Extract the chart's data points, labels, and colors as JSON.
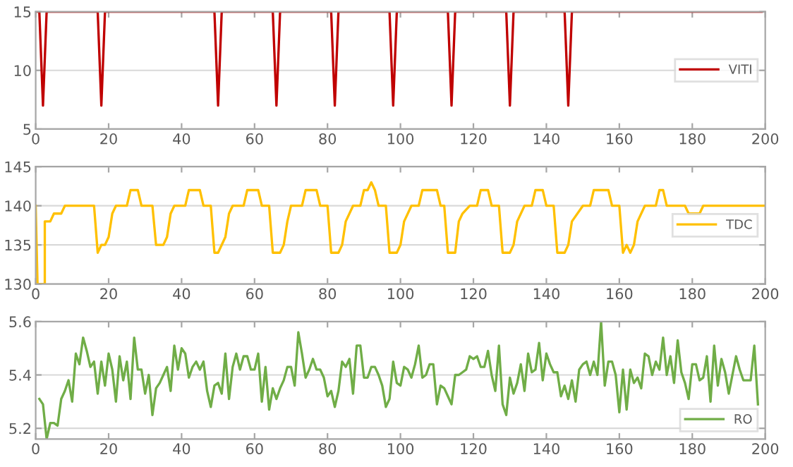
{
  "chart_data": [
    {
      "type": "line",
      "xlim": [
        0,
        200
      ],
      "xticks": [
        0,
        20,
        40,
        60,
        80,
        100,
        120,
        140,
        160,
        180,
        200
      ],
      "ylim": [
        5,
        15
      ],
      "yticks": [
        5,
        10,
        15
      ],
      "grid": "y",
      "legend": "right",
      "line_style": "solid",
      "marker": "none",
      "series": [
        {
          "name": "VITI",
          "color": "#c00000",
          "x": [
            0,
            1,
            2,
            3,
            17,
            18,
            19,
            49,
            50,
            51,
            65,
            66,
            67,
            81,
            82,
            83,
            97,
            98,
            99,
            113,
            114,
            115,
            129,
            130,
            131,
            145,
            146,
            147,
            199
          ],
          "values": [
            15,
            15,
            7,
            15,
            15,
            7,
            15,
            15,
            7,
            15,
            15,
            7,
            15,
            15,
            7,
            15,
            15,
            7,
            15,
            15,
            7,
            15,
            15,
            7,
            15,
            15,
            7,
            15,
            15
          ]
        }
      ]
    },
    {
      "type": "line",
      "xlim": [
        0,
        200
      ],
      "xticks": [
        0,
        20,
        40,
        60,
        80,
        100,
        120,
        140,
        160,
        180,
        200
      ],
      "ylim": [
        130,
        145
      ],
      "yticks": [
        130,
        135,
        140,
        145
      ],
      "grid": "y",
      "legend": "right",
      "line_style": "solid",
      "marker": "none",
      "series": [
        {
          "name": "TDC",
          "color": "#ffc000",
          "x": [
            0,
            0.5,
            2.5,
            2.5,
            4,
            5,
            7,
            8,
            16,
            17,
            18,
            19,
            20,
            21,
            22,
            25,
            26,
            28,
            29,
            32,
            33,
            35,
            36,
            37,
            38,
            41,
            42,
            45,
            46,
            48,
            49,
            50,
            52,
            53,
            54,
            57,
            58,
            61,
            62,
            64,
            65,
            67,
            68,
            69,
            70,
            73,
            74,
            77,
            78,
            80,
            81,
            83,
            84,
            85,
            87,
            89,
            90,
            91,
            92,
            93,
            94,
            96,
            97,
            99,
            100,
            101,
            103,
            105,
            106,
            110,
            111,
            112,
            113,
            115,
            116,
            117,
            119,
            121,
            122,
            124,
            125,
            127,
            128,
            130,
            131,
            132,
            134,
            136,
            137,
            139,
            140,
            142,
            143,
            145,
            146,
            147,
            150,
            152,
            153,
            157,
            158,
            160,
            161,
            162,
            163,
            164,
            165,
            167,
            170,
            171,
            172,
            173,
            178,
            179,
            182,
            183,
            200
          ],
          "values": [
            140,
            130,
            130,
            138,
            138,
            139,
            139,
            140,
            140,
            134,
            135,
            135,
            136,
            139,
            140,
            140,
            142,
            142,
            140,
            140,
            135,
            135,
            136,
            139,
            140,
            140,
            142,
            142,
            140,
            140,
            134,
            134,
            136,
            139,
            140,
            140,
            142,
            142,
            140,
            140,
            134,
            134,
            135,
            138,
            140,
            140,
            142,
            142,
            140,
            140,
            134,
            134,
            135,
            138,
            140,
            140,
            142,
            142,
            143,
            142,
            140,
            140,
            134,
            134,
            135,
            138,
            140,
            140,
            142,
            142,
            140,
            140,
            134,
            134,
            138,
            139,
            140,
            140,
            142,
            142,
            140,
            140,
            134,
            134,
            135,
            138,
            140,
            140,
            142,
            142,
            140,
            140,
            134,
            134,
            135,
            138,
            140,
            140,
            142,
            142,
            140,
            140,
            134,
            135,
            134,
            135,
            138,
            140,
            140,
            142,
            142,
            140,
            140,
            139,
            139,
            140,
            140
          ]
        }
      ]
    },
    {
      "type": "line",
      "xlim": [
        0,
        200
      ],
      "xticks": [
        0,
        20,
        40,
        60,
        80,
        100,
        120,
        140,
        160,
        180,
        200
      ],
      "ylim": [
        5.16,
        5.6
      ],
      "yticks": [
        5.2,
        5.4,
        5.6
      ],
      "grid": "y",
      "legend": "bottom right",
      "line_style": "solid",
      "marker": "none",
      "series": [
        {
          "name": "RO",
          "color": "#70ad47",
          "x": [
            1,
            2,
            3,
            4,
            5,
            6,
            7,
            8,
            9,
            10,
            11,
            12,
            13,
            14,
            15,
            16,
            17,
            18,
            19,
            20,
            21,
            22,
            23,
            24,
            25,
            26,
            27,
            28,
            29,
            30,
            31,
            32,
            33,
            34,
            35,
            36,
            37,
            38,
            39,
            40,
            41,
            42,
            43,
            44,
            45,
            46,
            47,
            48,
            49,
            50,
            51,
            52,
            53,
            54,
            55,
            56,
            57,
            58,
            59,
            60,
            61,
            62,
            63,
            64,
            65,
            66,
            67,
            68,
            69,
            70,
            71,
            72,
            73,
            74,
            75,
            76,
            77,
            78,
            79,
            80,
            81,
            82,
            83,
            84,
            85,
            86,
            87,
            88,
            89,
            90,
            91,
            92,
            93,
            94,
            95,
            96,
            97,
            98,
            99,
            100,
            101,
            102,
            103,
            104,
            105,
            106,
            107,
            108,
            109,
            110,
            111,
            112,
            113,
            114,
            115,
            116,
            117,
            118,
            119,
            120,
            121,
            122,
            123,
            124,
            125,
            126,
            127,
            128,
            129,
            130,
            131,
            132,
            133,
            134,
            135,
            136,
            137,
            138,
            139,
            140,
            141,
            142,
            143,
            144,
            145,
            146,
            147,
            148,
            149,
            150,
            151,
            152,
            153,
            154,
            155,
            156,
            157,
            158,
            159,
            160,
            161,
            162,
            163,
            164,
            165,
            166,
            167,
            168,
            169,
            170,
            171,
            172,
            173,
            174,
            175,
            176,
            177,
            178,
            179,
            180,
            181,
            182,
            183,
            184,
            185,
            186,
            187,
            188,
            189,
            190,
            191,
            192,
            193,
            194,
            195,
            196,
            197,
            198
          ],
          "values": [
            5.31,
            5.29,
            5.16,
            5.22,
            5.22,
            5.21,
            5.31,
            5.34,
            5.38,
            5.3,
            5.48,
            5.44,
            5.54,
            5.49,
            5.43,
            5.45,
            5.33,
            5.45,
            5.36,
            5.48,
            5.42,
            5.3,
            5.47,
            5.38,
            5.45,
            5.31,
            5.54,
            5.42,
            5.42,
            5.33,
            5.4,
            5.25,
            5.35,
            5.37,
            5.4,
            5.43,
            5.34,
            5.51,
            5.42,
            5.5,
            5.48,
            5.39,
            5.43,
            5.45,
            5.42,
            5.45,
            5.34,
            5.28,
            5.36,
            5.37,
            5.33,
            5.48,
            5.31,
            5.43,
            5.48,
            5.42,
            5.47,
            5.47,
            5.42,
            5.42,
            5.48,
            5.3,
            5.43,
            5.27,
            5.35,
            5.31,
            5.35,
            5.38,
            5.43,
            5.43,
            5.36,
            5.56,
            5.48,
            5.39,
            5.42,
            5.46,
            5.42,
            5.42,
            5.39,
            5.32,
            5.34,
            5.28,
            5.34,
            5.45,
            5.43,
            5.46,
            5.33,
            5.51,
            5.51,
            5.39,
            5.39,
            5.43,
            5.43,
            5.4,
            5.36,
            5.28,
            5.31,
            5.45,
            5.37,
            5.36,
            5.43,
            5.42,
            5.39,
            5.44,
            5.51,
            5.39,
            5.4,
            5.44,
            5.44,
            5.29,
            5.36,
            5.35,
            5.32,
            5.29,
            5.4,
            5.4,
            5.41,
            5.42,
            5.47,
            5.46,
            5.47,
            5.43,
            5.43,
            5.49,
            5.4,
            5.34,
            5.51,
            5.29,
            5.25,
            5.39,
            5.33,
            5.37,
            5.44,
            5.34,
            5.48,
            5.41,
            5.42,
            5.52,
            5.38,
            5.48,
            5.44,
            5.41,
            5.41,
            5.32,
            5.36,
            5.31,
            5.38,
            5.3,
            5.42,
            5.44,
            5.45,
            5.4,
            5.45,
            5.4,
            5.6,
            5.36,
            5.45,
            5.45,
            5.4,
            5.26,
            5.42,
            5.27,
            5.42,
            5.37,
            5.39,
            5.35,
            5.48,
            5.47,
            5.4,
            5.45,
            5.42,
            5.54,
            5.4,
            5.47,
            5.37,
            5.53,
            5.41,
            5.37,
            5.31,
            5.44,
            5.44,
            5.38,
            5.39,
            5.47,
            5.3,
            5.51,
            5.36,
            5.46,
            5.41,
            5.33,
            5.4,
            5.47,
            5.42,
            5.38,
            5.38,
            5.38,
            5.51,
            5.29
          ]
        }
      ]
    }
  ]
}
